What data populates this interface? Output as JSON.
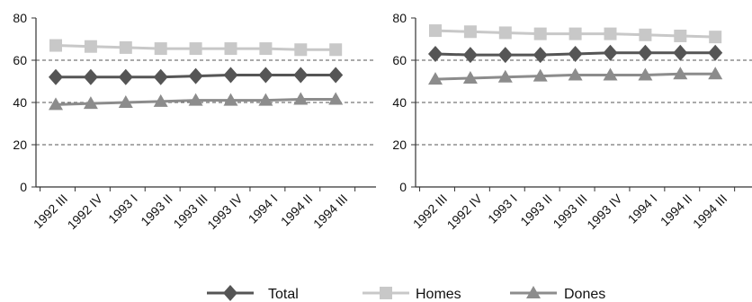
{
  "chart_data": [
    {
      "type": "line",
      "categories": [
        "1992 III",
        "1992 IV",
        "1993 I",
        "1993 II",
        "1993 III",
        "1993 IV",
        "1994 I",
        "1994 II",
        "1994 III"
      ],
      "ylim": [
        0,
        80
      ],
      "yticks": [
        0,
        20,
        40,
        60,
        80
      ],
      "grid": "dashed horizontal at 20, 40, 60",
      "series": [
        {
          "name": "Total",
          "values": [
            52,
            52,
            52,
            52,
            52.5,
            53,
            53,
            53,
            53
          ]
        },
        {
          "name": "Homes",
          "values": [
            67,
            66.5,
            66,
            65.5,
            65.5,
            65.5,
            65.5,
            65,
            65
          ]
        },
        {
          "name": "Dones",
          "values": [
            39,
            39.5,
            40,
            40.5,
            41,
            41,
            41,
            41.5,
            41.5
          ]
        }
      ]
    },
    {
      "type": "line",
      "categories": [
        "1992 III",
        "1992 IV",
        "1993 I",
        "1993 II",
        "1993 III",
        "1993 IV",
        "1994 I",
        "1994 II",
        "1994 III"
      ],
      "ylim": [
        0,
        80
      ],
      "yticks": [
        0,
        20,
        40,
        60,
        80
      ],
      "grid": "dashed horizontal at 20, 40, 60",
      "series": [
        {
          "name": "Total",
          "values": [
            63,
            62.5,
            62.5,
            62.5,
            63,
            63.5,
            63.5,
            63.5,
            63.5
          ]
        },
        {
          "name": "Homes",
          "values": [
            74,
            73.5,
            73,
            72.5,
            72.5,
            72.5,
            72,
            71.5,
            71
          ]
        },
        {
          "name": "Dones",
          "values": [
            51,
            51.5,
            52,
            52.5,
            53,
            53,
            53,
            53.5,
            53.5
          ]
        }
      ]
    }
  ],
  "legend": {
    "position": "bottom-center",
    "items": [
      {
        "label": "Total",
        "color": "#555555",
        "marker": "diamond"
      },
      {
        "label": "Homes",
        "color": "#c8c8c8",
        "marker": "square"
      },
      {
        "label": "Dones",
        "color": "#8c8c8c",
        "marker": "triangle"
      }
    ]
  }
}
